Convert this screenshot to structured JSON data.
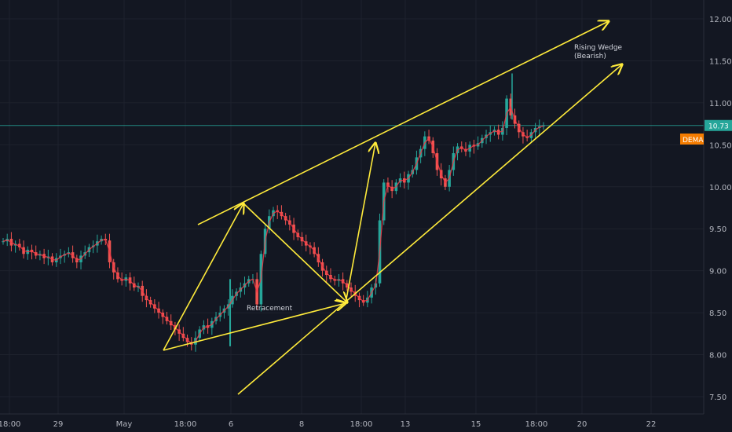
{
  "chart_data": {
    "type": "candlestick",
    "ylim": [
      7.3,
      12.15
    ],
    "y_ticks": [
      "12.00",
      "11.50",
      "11.00",
      "10.50",
      "10.00",
      "9.50",
      "9.00",
      "8.50",
      "8.00",
      "7.50"
    ],
    "y_tick_values": [
      12.0,
      11.5,
      11.0,
      10.5,
      10.0,
      9.5,
      9.0,
      8.5,
      8.0,
      7.5
    ],
    "x_ticks": [
      "18:00",
      "29",
      "May",
      "18:00",
      "6",
      "8",
      "18:00",
      "13",
      "15",
      "18:00",
      "20",
      "22"
    ],
    "last_price": {
      "label": "10.73",
      "value": 10.73,
      "color": "#26a69a"
    },
    "indicator_badge": {
      "label": "DEMA",
      "value": 10.6,
      "color": "#f57c00"
    },
    "annotations": {
      "wedge": "Rising Wedge\n(Bearish)",
      "wedge_line1": "Rising Wedge",
      "wedge_line2": "(Bearish)",
      "retracement": "Retracement"
    },
    "colors": {
      "up": "#26a69a",
      "down": "#ef5350",
      "drawing": "#ffeb3b",
      "dema": "#f23645",
      "grid": "#1e222d",
      "background": "#131722"
    },
    "candles_close": [
      9.35,
      9.38,
      9.3,
      9.32,
      9.28,
      9.2,
      9.25,
      9.22,
      9.18,
      9.2,
      9.15,
      9.17,
      9.1,
      9.15,
      9.18,
      9.2,
      9.22,
      9.15,
      9.1,
      9.18,
      9.22,
      9.28,
      9.3,
      9.35,
      9.38,
      9.36,
      9.1,
      8.98,
      8.9,
      8.88,
      8.92,
      8.85,
      8.8,
      8.82,
      8.7,
      8.65,
      8.6,
      8.55,
      8.5,
      8.45,
      8.4,
      8.35,
      8.3,
      8.25,
      8.2,
      8.15,
      8.12,
      8.2,
      8.3,
      8.35,
      8.32,
      8.4,
      8.45,
      8.5,
      8.55,
      8.6,
      8.7,
      8.75,
      8.8,
      8.85,
      8.9,
      8.9,
      8.6,
      9.2,
      9.5,
      9.65,
      9.72,
      9.7,
      9.65,
      9.6,
      9.55,
      9.45,
      9.4,
      9.35,
      9.3,
      9.28,
      9.2,
      9.1,
      9.0,
      8.95,
      8.9,
      8.88,
      8.9,
      8.85,
      8.8,
      8.75,
      8.7,
      8.65,
      8.62,
      8.68,
      8.8,
      8.85,
      9.6,
      10.05,
      10.0,
      9.95,
      10.05,
      10.1,
      10.05,
      10.15,
      10.2,
      10.35,
      10.45,
      10.6,
      10.55,
      10.4,
      10.2,
      10.1,
      10.0,
      10.2,
      10.4,
      10.48,
      10.45,
      10.42,
      10.5,
      10.48,
      10.52,
      10.58,
      10.62,
      10.65,
      10.68,
      10.62,
      10.7,
      11.05,
      10.85,
      10.75,
      10.65,
      10.6,
      10.58,
      10.65,
      10.7,
      10.72,
      10.73
    ]
  }
}
